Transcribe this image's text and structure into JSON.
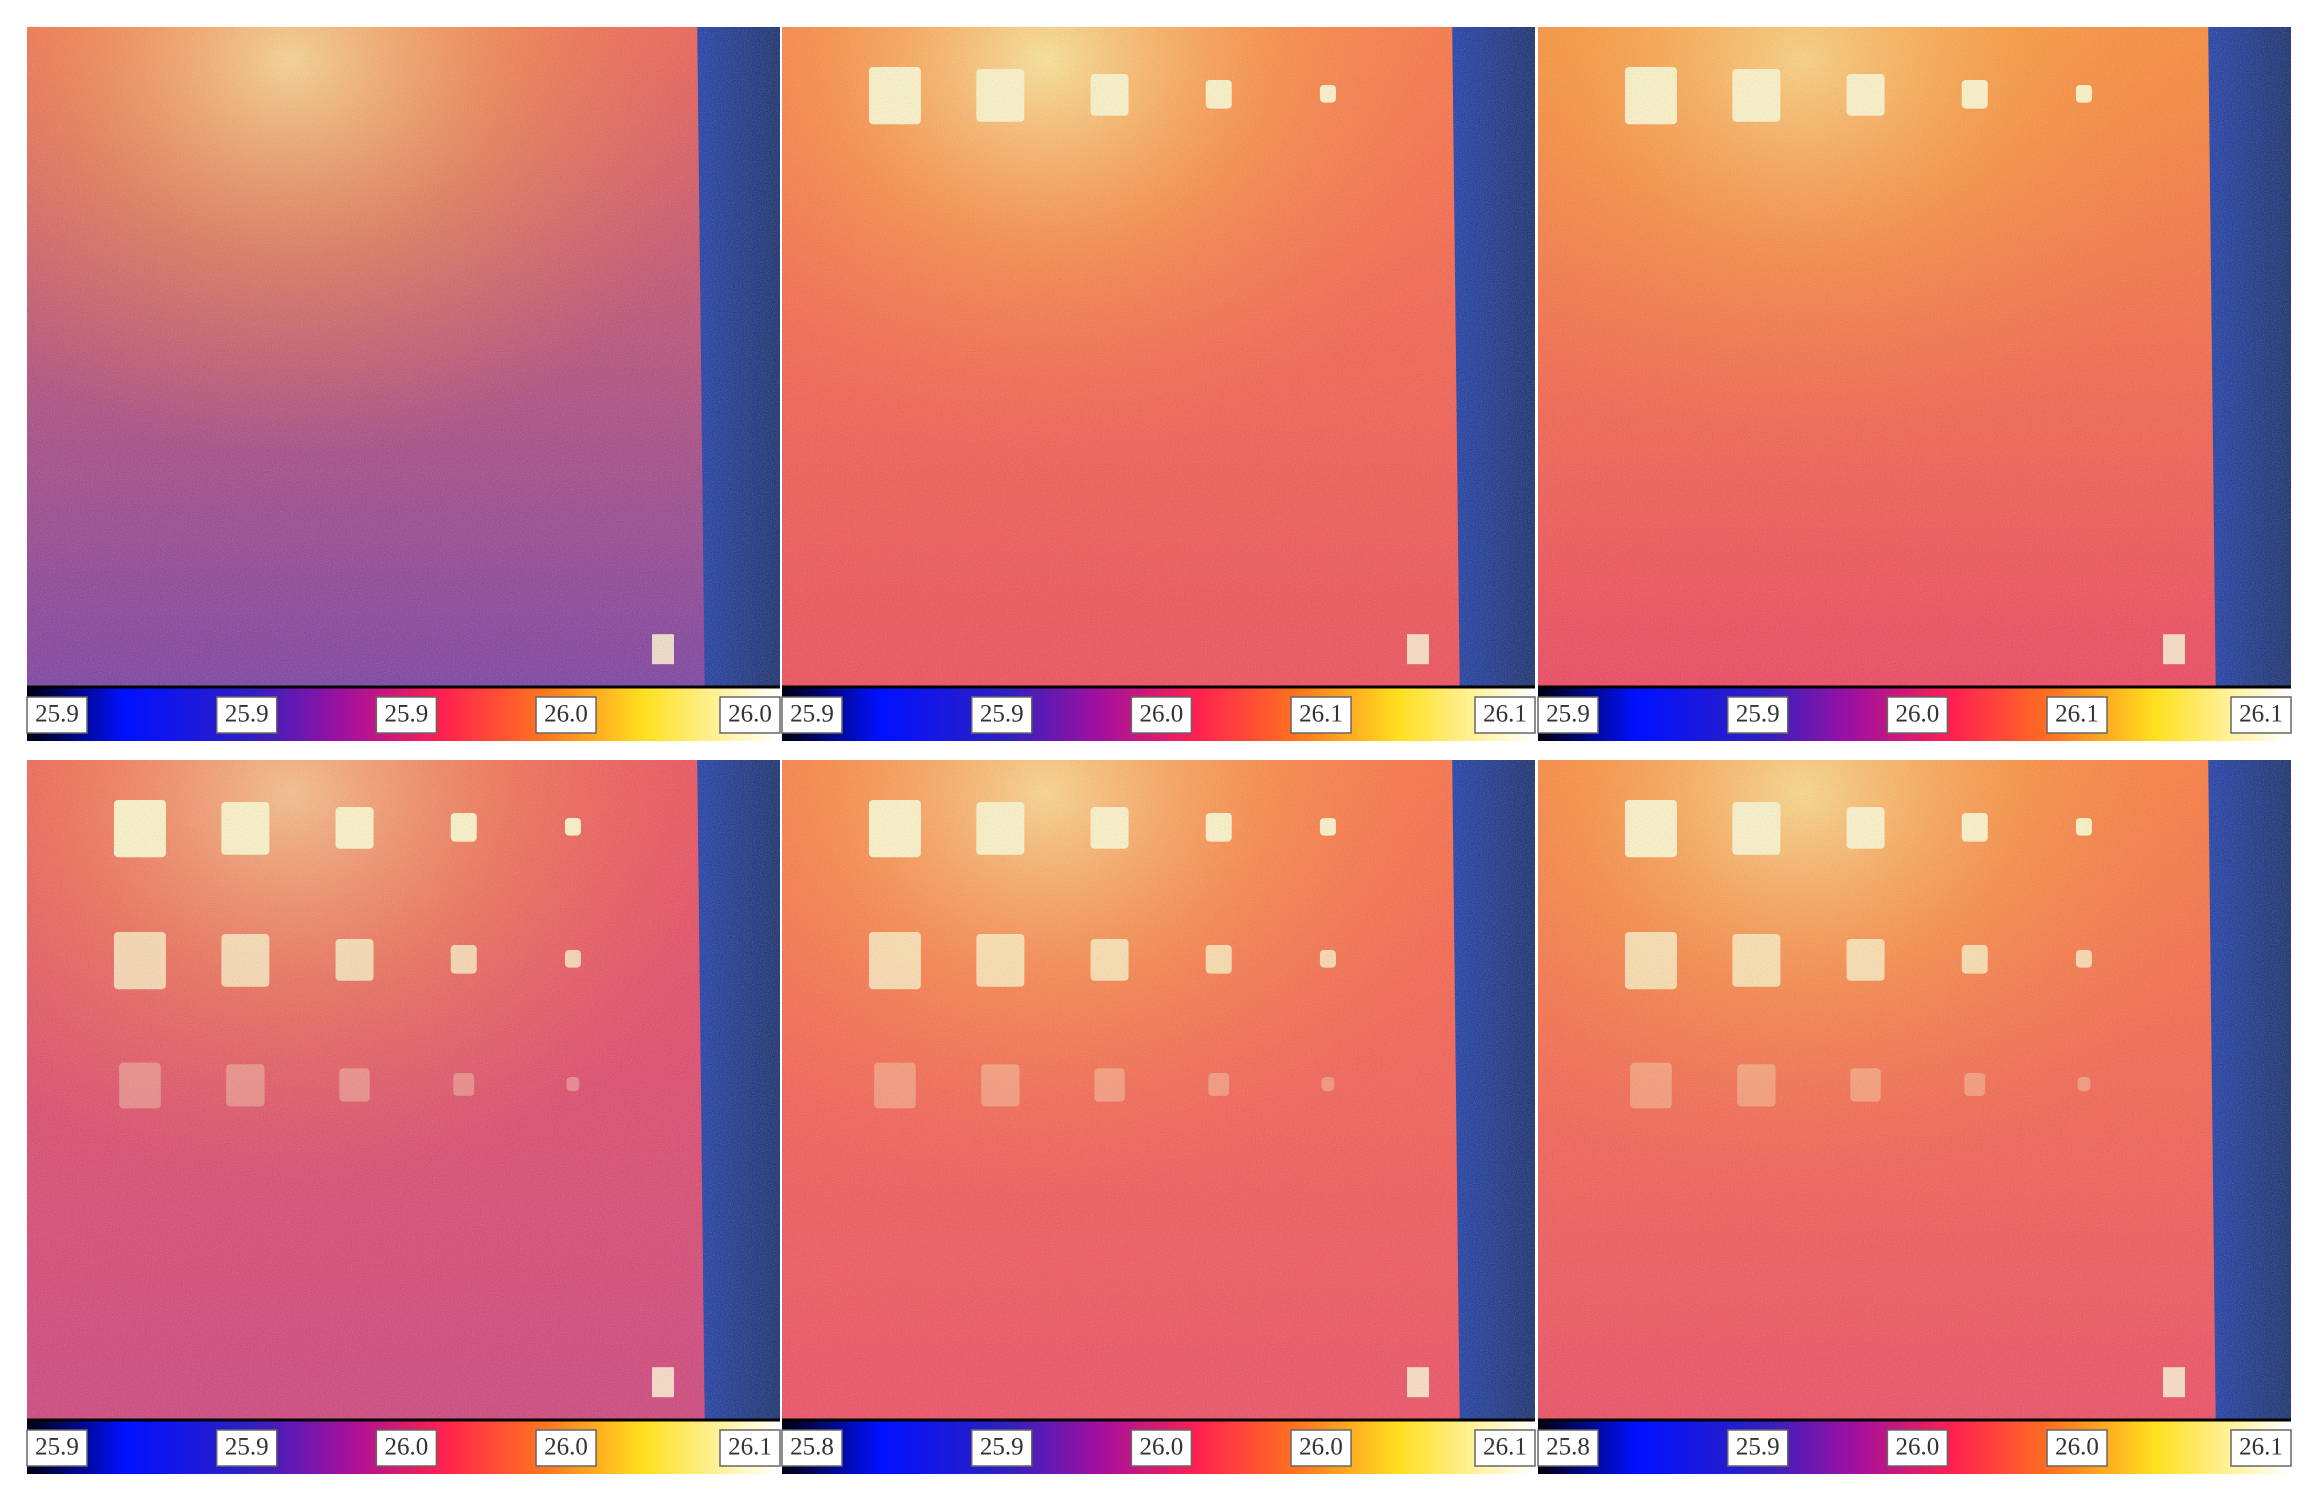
{
  "panels": [
    {
      "labels": [
        "25.9",
        "25.9",
        "25.9",
        "26.0",
        "26.0"
      ]
    },
    {
      "labels": [
        "25.9",
        "25.9",
        "26.0",
        "26.1",
        "26.1"
      ]
    },
    {
      "labels": [
        "25.9",
        "25.9",
        "26.0",
        "26.1",
        "26.1"
      ]
    },
    {
      "labels": [
        "25.9",
        "25.9",
        "26.0",
        "26.0",
        "26.1"
      ]
    },
    {
      "labels": [
        "25.8",
        "25.9",
        "26.0",
        "26.0",
        "26.1"
      ]
    },
    {
      "labels": [
        "25.8",
        "25.9",
        "26.0",
        "26.0",
        "26.1"
      ]
    }
  ]
}
